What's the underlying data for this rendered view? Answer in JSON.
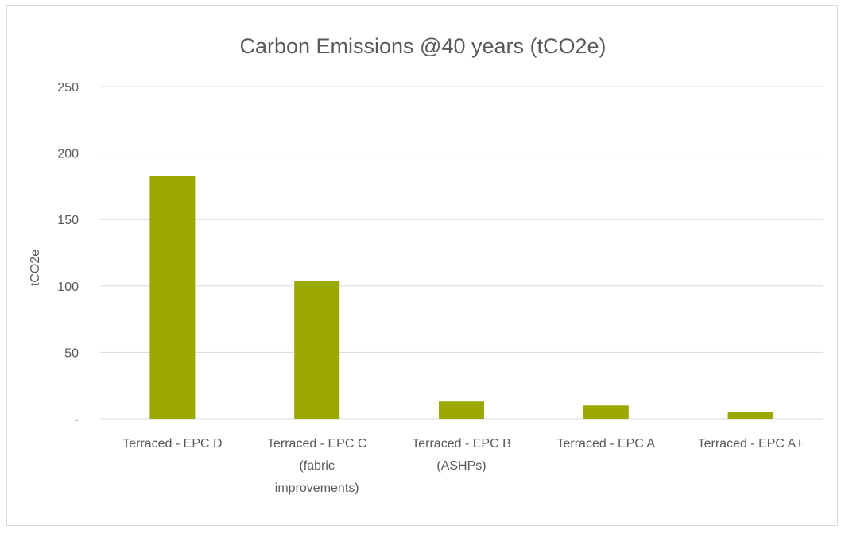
{
  "chart_data": {
    "type": "bar",
    "title": "Carbon Emissions  @40 years (tCO2e)",
    "xlabel": "",
    "ylabel": "tCO2e",
    "ylim": [
      0,
      250
    ],
    "yticks": [
      0,
      50,
      100,
      150,
      200,
      250
    ],
    "ytick_labels": [
      "-",
      "50",
      "100",
      "150",
      "200",
      "250"
    ],
    "categories": [
      "Terraced - EPC D",
      "Terraced - EPC C (fabric improvements)",
      "Terraced - EPC B (ASHPs)",
      "Terraced - EPC A",
      "Terraced - EPC A+"
    ],
    "category_lines": [
      [
        "Terraced - EPC D"
      ],
      [
        "Terraced - EPC C",
        "(fabric",
        "improvements)"
      ],
      [
        "Terraced - EPC B",
        "(ASHPs)"
      ],
      [
        "Terraced - EPC A"
      ],
      [
        "Terraced - EPC A+"
      ]
    ],
    "values": [
      183,
      104,
      13,
      10,
      5
    ],
    "bar_color": "#9aa800",
    "grid": true,
    "legend": false
  }
}
